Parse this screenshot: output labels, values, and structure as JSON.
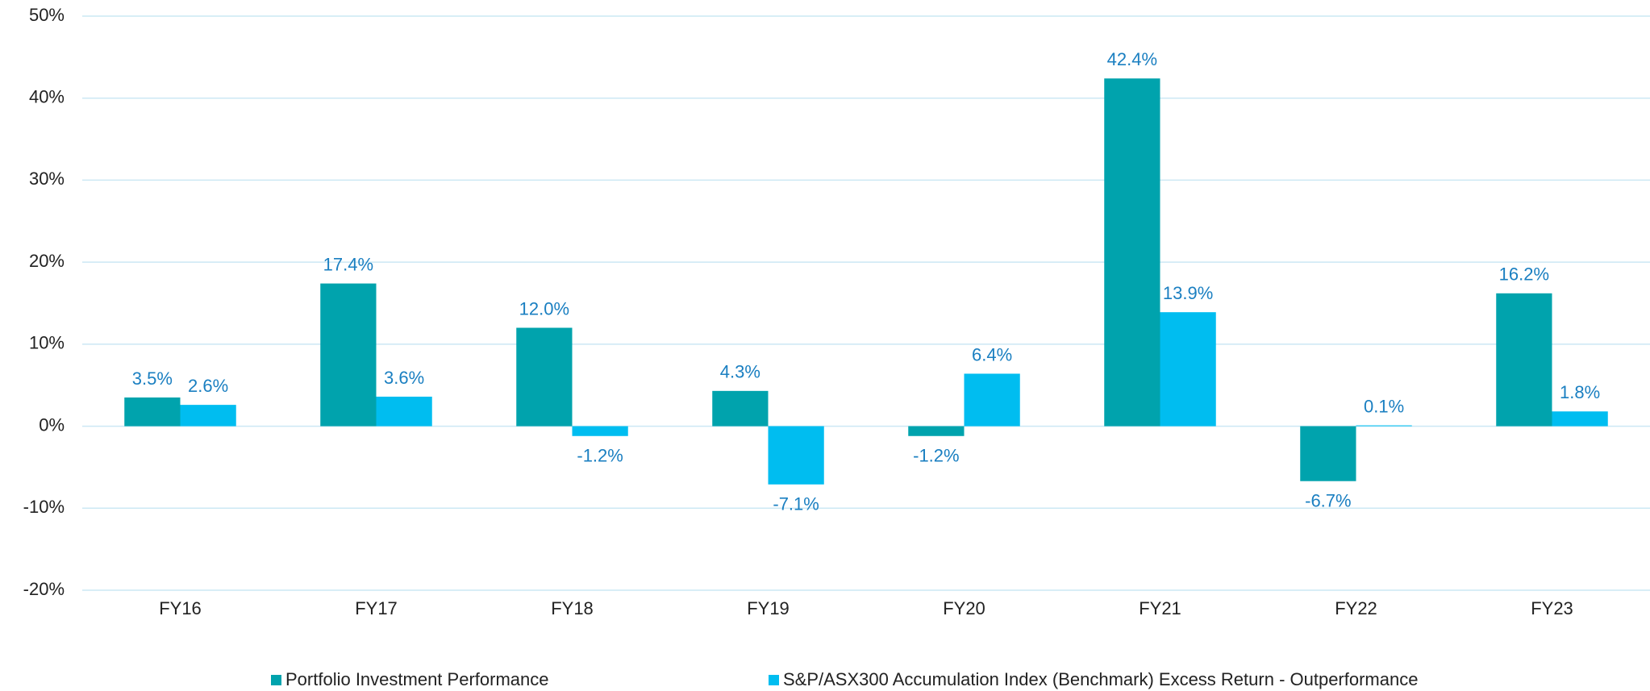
{
  "chart_data": {
    "type": "bar",
    "categories": [
      "FY16",
      "FY17",
      "FY18",
      "FY19",
      "FY20",
      "FY21",
      "FY22",
      "FY23"
    ],
    "series": [
      {
        "name": "Portfolio Investment Performance",
        "color": "#00a3ad",
        "values": [
          3.5,
          17.4,
          12.0,
          4.3,
          -1.2,
          42.4,
          -6.7,
          16.2
        ],
        "value_labels": [
          "3.5%",
          "17.4%",
          "12.0%",
          "4.3%",
          "-1.2%",
          "42.4%",
          "-6.7%",
          "16.2%"
        ]
      },
      {
        "name": "S&P/ASX300 Accumulation Index (Benchmark) Excess Return - Outperformance",
        "color": "#00bdf0",
        "values": [
          2.6,
          3.6,
          -1.2,
          -7.1,
          6.4,
          13.9,
          0.1,
          1.8
        ],
        "value_labels": [
          "2.6%",
          "3.6%",
          "-1.2%",
          "-7.1%",
          "6.4%",
          "13.9%",
          "0.1%",
          "1.8%"
        ]
      }
    ],
    "ylim": [
      -20,
      50
    ],
    "yticks": [
      {
        "value": -20,
        "label": "-20%"
      },
      {
        "value": -10,
        "label": "-10%"
      },
      {
        "value": 0,
        "label": "0%"
      },
      {
        "value": 10,
        "label": "10%"
      },
      {
        "value": 20,
        "label": "20%"
      },
      {
        "value": 30,
        "label": "30%"
      },
      {
        "value": 40,
        "label": "40%"
      },
      {
        "value": 50,
        "label": "50%"
      }
    ],
    "grid": true,
    "legend": "bottom"
  }
}
